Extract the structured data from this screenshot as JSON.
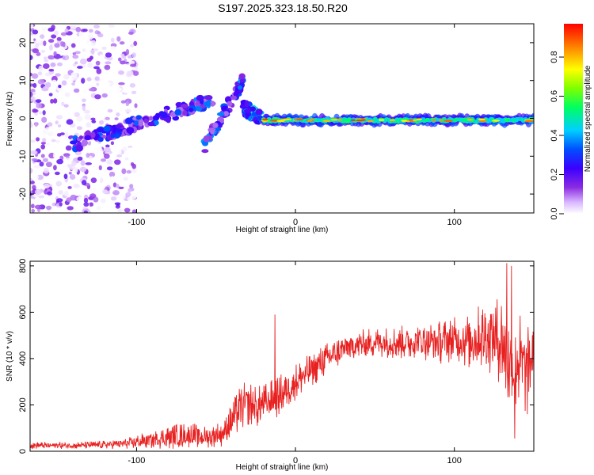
{
  "title": "S197.2025.323.18.50.R20",
  "colors": {
    "snr_line": "#e82020",
    "frame": "#000000"
  },
  "chart_data": [
    {
      "type": "heatmap",
      "name": "spectrogram",
      "xlabel": "Height of straight line (km)",
      "ylabel": "Frequency (Hz)",
      "xlim": [
        -167,
        150
      ],
      "ylim": [
        -25,
        25
      ],
      "xticks": [
        -100,
        0,
        100
      ],
      "yticks": [
        -20,
        -10,
        0,
        10,
        20
      ],
      "colorbar": {
        "label": "Normalized spectral amplitude",
        "ticks": [
          0.0,
          0.2,
          0.4,
          0.6,
          0.8
        ],
        "range": [
          0,
          0.97
        ]
      },
      "features": [
        {
          "x_range": [
            -167,
            -100
          ],
          "freq_range": [
            -25,
            25
          ],
          "level": "0.0-0.2",
          "description_type": "scattered noise"
        },
        {
          "x_range": [
            -140,
            -52
          ],
          "freq_start": -7,
          "freq_end": 5,
          "level": "0.1-0.4",
          "description_type": "rising trace"
        },
        {
          "x_range": [
            -58,
            -33
          ],
          "freq_start": -8,
          "freq_end": 10,
          "level": "0.1-0.4",
          "description_type": "rising trace"
        },
        {
          "x_range": [
            -33,
            -22
          ],
          "freq_start": 3,
          "freq_end": 0,
          "level": "0.2-0.5",
          "description_type": "falling trace"
        },
        {
          "x_range": [
            -20,
            150
          ],
          "freq": -0.5,
          "level": "0.3-0.9",
          "description_type": "near-zero frequency line"
        }
      ]
    },
    {
      "type": "line",
      "name": "snr",
      "xlabel": "Height of straight line (km)",
      "ylabel": "SNR (10 * v/v)",
      "xlim": [
        -167,
        150
      ],
      "ylim": [
        0,
        820
      ],
      "xticks": [
        -100,
        0,
        100
      ],
      "yticks": [
        0,
        200,
        400,
        600,
        800
      ],
      "series": [
        {
          "name": "SNR",
          "color": "#e82020",
          "envelope": {
            "x": [
              -167,
              -140,
              -120,
              -105,
              -95,
              -85,
              -75,
              -65,
              -55,
              -45,
              -40,
              -35,
              -30,
              -25,
              -20,
              -15,
              -10,
              -5,
              0,
              10,
              20,
              30,
              40,
              50,
              60,
              70,
              80,
              90,
              100,
              110,
              120,
              130,
              135,
              140,
              145,
              150
            ],
            "y": [
              25,
              25,
              28,
              35,
              45,
              55,
              65,
              70,
              60,
              80,
              130,
              180,
              210,
              190,
              200,
              220,
              240,
              270,
              300,
              350,
              400,
              440,
              460,
              470,
              470,
              470,
              480,
              470,
              480,
              480,
              500,
              480,
              350,
              400,
              350,
              420
            ],
            "spread": [
              15,
              15,
              18,
              25,
              35,
              45,
              55,
              55,
              45,
              60,
              80,
              100,
              100,
              90,
              90,
              90,
              90,
              85,
              80,
              75,
              70,
              65,
              65,
              65,
              70,
              75,
              85,
              95,
              100,
              130,
              150,
              200,
              220,
              220,
              200,
              120
            ]
          },
          "spikes": [
            {
              "x": -13,
              "y": 590
            },
            {
              "x": 133,
              "y": 812
            },
            {
              "x": 136,
              "y": 800
            },
            {
              "x": 138,
              "y": 55
            },
            {
              "x": 146,
              "y": 160
            }
          ]
        }
      ]
    }
  ]
}
